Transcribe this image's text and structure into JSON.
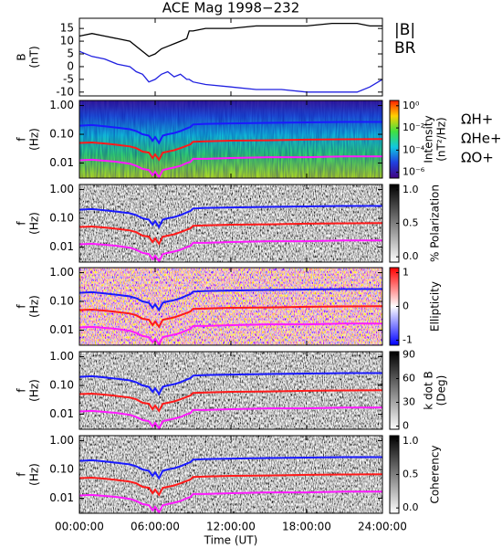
{
  "title": "ACE Mag 1998−232",
  "chart_data": [
    {
      "type": "line",
      "ylabel": [
        "B",
        "(nT)"
      ],
      "ylim": [
        -11.5,
        19
      ],
      "yticks": [
        15,
        10,
        5,
        0,
        -5,
        -10
      ],
      "x": [
        0,
        1,
        2,
        3,
        4,
        4.5,
        5,
        5.5,
        6,
        6.5,
        7,
        7.5,
        8,
        8.5,
        8.7,
        9,
        10,
        12,
        14,
        16,
        18,
        20,
        22,
        23,
        24
      ],
      "series": [
        {
          "name": "|B|",
          "color": "#000000",
          "values": [
            12,
            13,
            12,
            11,
            10,
            8,
            6,
            4,
            5,
            7,
            8,
            9,
            10,
            11,
            14,
            14,
            15,
            15,
            16,
            16,
            16,
            17,
            17,
            16,
            16
          ]
        },
        {
          "name": "BR",
          "color": "#2020e0",
          "values": [
            6,
            4,
            3,
            1,
            0,
            -2,
            -3,
            -6,
            -5,
            -3,
            -2,
            -4,
            -3,
            -5,
            -5,
            -6,
            -7,
            -8,
            -9,
            -9,
            -10,
            -10,
            -10,
            -8,
            -5
          ]
        }
      ]
    },
    {
      "type": "spectrogram",
      "style": "rainbow",
      "ylabel": [
        "f",
        "(Hz)"
      ],
      "log": true,
      "ylim": [
        0.003,
        1.5
      ],
      "yticks": [
        {
          "value": 1,
          "label": "1.00"
        },
        {
          "value": 0.1,
          "label": "0.10"
        },
        0.01
      ],
      "colorbar": {
        "label": [
          "Intensity",
          "(nT²/Hz)"
        ],
        "log": true,
        "clim": [
          3e-07,
          3
        ],
        "ticks": [
          {
            "value": 1,
            "label": "10⁰"
          },
          {
            "value": 0.01,
            "label": "10⁻²"
          },
          {
            "value": 0.0001,
            "label": "10⁻⁴"
          },
          {
            "value": 1e-06,
            "label": "10⁻⁶"
          }
        ]
      }
    },
    {
      "type": "spectrogram",
      "style": "gray",
      "ylabel": [
        "f",
        "(Hz)"
      ],
      "log": true,
      "ylim": [
        0.003,
        1.5
      ],
      "yticks": [
        {
          "value": 1,
          "label": "1.00"
        },
        {
          "value": 0.1,
          "label": "0.10"
        },
        0.01
      ],
      "colorbar": {
        "label": [
          "% Polarization"
        ],
        "clim": [
          -0.08,
          1.08
        ],
        "ticks": [
          {
            "value": 1,
            "label": "1.0"
          },
          0.5,
          {
            "value": 0,
            "label": "0.0"
          }
        ]
      }
    },
    {
      "type": "spectrogram",
      "style": "redblue",
      "ylabel": [
        "f",
        "(Hz)"
      ],
      "log": true,
      "ylim": [
        0.003,
        1.5
      ],
      "yticks": [
        {
          "value": 1,
          "label": "1.00"
        },
        {
          "value": 0.1,
          "label": "0.10"
        },
        0.01
      ],
      "colorbar": {
        "label": [
          "Ellipticity"
        ],
        "clim": [
          -1.15,
          1.15
        ],
        "ticks": [
          1,
          0,
          -1
        ]
      }
    },
    {
      "type": "spectrogram",
      "style": "gray",
      "ylabel": [
        "f",
        "(Hz)"
      ],
      "log": true,
      "ylim": [
        0.003,
        1.5
      ],
      "yticks": [
        {
          "value": 1,
          "label": "1.00"
        },
        {
          "value": 0.1,
          "label": "0.10"
        },
        0.01
      ],
      "colorbar": {
        "label": [
          "k dot B",
          "(Deg)"
        ],
        "clim": [
          -4,
          94
        ],
        "ticks": [
          90,
          60,
          30,
          0
        ]
      }
    },
    {
      "type": "spectrogram",
      "style": "gray",
      "ylabel": [
        "f",
        "(Hz)"
      ],
      "log": true,
      "ylim": [
        0.003,
        1.5
      ],
      "yticks": [
        {
          "value": 1,
          "label": "1.00"
        },
        {
          "value": 0.1,
          "label": "0.10"
        },
        0.01
      ],
      "colorbar": {
        "label": [
          "Coherency"
        ],
        "clim": [
          -0.08,
          1.08
        ],
        "ticks": [
          {
            "value": 1,
            "label": "1.0"
          },
          0.5,
          {
            "value": 0,
            "label": "0.0"
          }
        ]
      },
      "xlim": [
        0,
        24
      ],
      "xlabel": "Time (UT)",
      "xticks": [
        {
          "value": 0,
          "label": "00:00:00"
        },
        {
          "value": 6,
          "label": "06:00:00"
        },
        {
          "value": 12,
          "label": "12:00:00"
        },
        {
          "value": 18,
          "label": "18:00:00"
        },
        {
          "value": 24,
          "label": "24:00:00"
        }
      ]
    }
  ],
  "overlay": {
    "x": [
      0,
      1,
      2,
      3,
      4,
      4.5,
      5,
      5.5,
      5.8,
      6,
      6.3,
      6.6,
      7,
      7.5,
      8,
      8.5,
      8.8,
      9,
      10,
      12,
      15,
      18,
      21,
      24
    ],
    "series": [
      {
        "name": "ΩH+",
        "color": "#1a1aff",
        "values": [
          0.2,
          0.21,
          0.19,
          0.17,
          0.15,
          0.13,
          0.1,
          0.09,
          0.06,
          0.08,
          0.05,
          0.09,
          0.1,
          0.11,
          0.13,
          0.16,
          0.18,
          0.22,
          0.23,
          0.24,
          0.25,
          0.26,
          0.27,
          0.27
        ]
      },
      {
        "name": "ΩHe+",
        "color": "#ff1a1a",
        "values": [
          0.05,
          0.052,
          0.048,
          0.043,
          0.038,
          0.033,
          0.025,
          0.023,
          0.015,
          0.02,
          0.013,
          0.023,
          0.025,
          0.028,
          0.033,
          0.04,
          0.045,
          0.055,
          0.057,
          0.06,
          0.062,
          0.065,
          0.067,
          0.068
        ]
      },
      {
        "name": "ΩO+",
        "color": "#ff1aff",
        "values": [
          0.0125,
          0.013,
          0.012,
          0.011,
          0.0095,
          0.008,
          0.0063,
          0.0057,
          0.0038,
          0.005,
          0.0032,
          0.0057,
          0.0063,
          0.007,
          0.008,
          0.01,
          0.011,
          0.014,
          0.014,
          0.015,
          0.016,
          0.016,
          0.017,
          0.017
        ]
      }
    ]
  }
}
